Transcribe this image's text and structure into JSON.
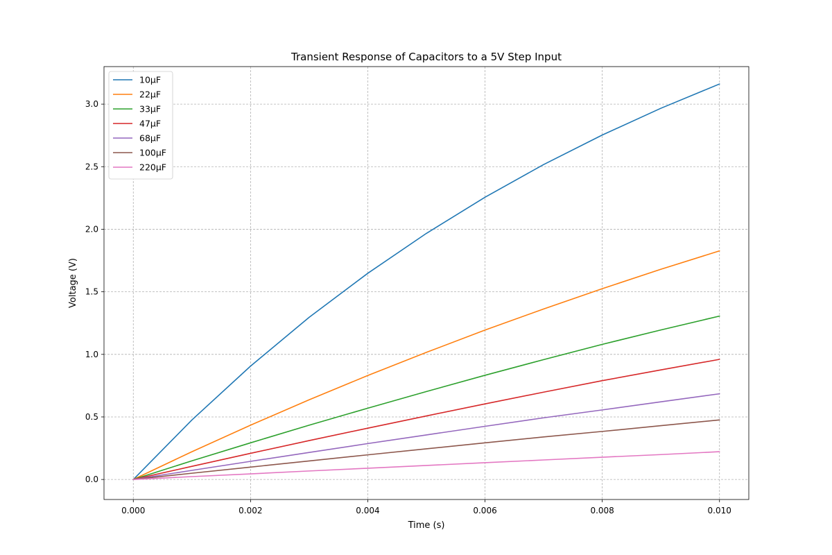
{
  "chart_data": {
    "type": "line",
    "title": "Transient Response of Capacitors to a 5V Step Input",
    "xlabel": "Time (s)",
    "ylabel": "Voltage (V)",
    "xlim": [
      -0.0005,
      0.0105
    ],
    "ylim": [
      -0.16,
      3.3
    ],
    "xticks": [
      0.0,
      0.002,
      0.004,
      0.006,
      0.008,
      0.01
    ],
    "xtick_labels": [
      "0.000",
      "0.002",
      "0.004",
      "0.006",
      "0.008",
      "0.010"
    ],
    "yticks": [
      0.0,
      0.5,
      1.0,
      1.5,
      2.0,
      2.5,
      3.0
    ],
    "ytick_labels": [
      "0.0",
      "0.5",
      "1.0",
      "1.5",
      "2.0",
      "2.5",
      "3.0"
    ],
    "grid": true,
    "legend_position": "upper-left",
    "x": [
      0.0,
      0.001,
      0.002,
      0.003,
      0.004,
      0.005,
      0.006,
      0.007,
      0.008,
      0.009,
      0.01
    ],
    "series": [
      {
        "name": "10μF",
        "color": "#1f77b4",
        "values": [
          0.0,
          0.476,
          0.906,
          1.296,
          1.648,
          1.967,
          2.256,
          2.517,
          2.753,
          2.967,
          3.161
        ]
      },
      {
        "name": "22μF",
        "color": "#ff7f0e",
        "values": [
          0.0,
          0.222,
          0.434,
          0.637,
          0.831,
          1.016,
          1.194,
          1.363,
          1.525,
          1.68,
          1.827
        ]
      },
      {
        "name": "33μF",
        "color": "#2ca02c",
        "values": [
          0.0,
          0.149,
          0.293,
          0.434,
          0.57,
          0.703,
          0.833,
          0.958,
          1.08,
          1.195,
          1.306
        ]
      },
      {
        "name": "47μF",
        "color": "#d62728",
        "values": [
          0.0,
          0.105,
          0.209,
          0.311,
          0.41,
          0.508,
          0.604,
          0.698,
          0.79,
          0.876,
          0.96
        ]
      },
      {
        "name": "68μF",
        "color": "#9467bd",
        "values": [
          0.0,
          0.073,
          0.145,
          0.216,
          0.287,
          0.356,
          0.425,
          0.493,
          0.556,
          0.621,
          0.685
        ]
      },
      {
        "name": "100μF",
        "color": "#8c564b",
        "values": [
          0.0,
          0.05,
          0.099,
          0.148,
          0.197,
          0.245,
          0.293,
          0.34,
          0.384,
          0.43,
          0.476
        ]
      },
      {
        "name": "220μF",
        "color": "#e377c2",
        "values": [
          0.0,
          0.023,
          0.045,
          0.068,
          0.09,
          0.112,
          0.134,
          0.156,
          0.178,
          0.199,
          0.222
        ]
      }
    ]
  }
}
